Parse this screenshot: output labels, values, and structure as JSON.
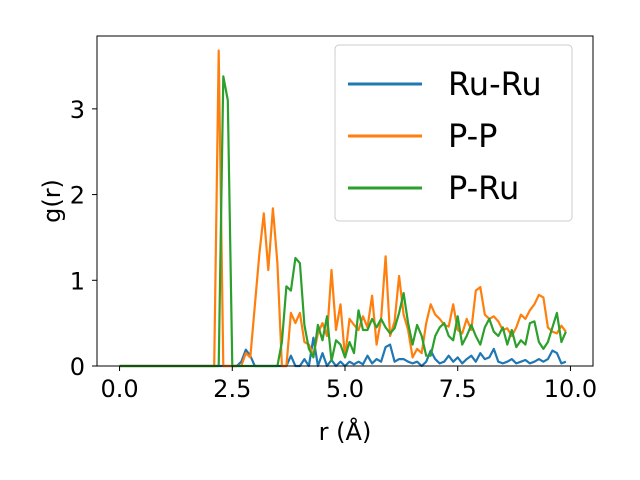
{
  "chart_data": {
    "type": "line",
    "xlabel": "r (Å)",
    "ylabel": "g(r)",
    "xlim": [
      -0.5,
      10.5
    ],
    "ylim": [
      0,
      3.85
    ],
    "xticks": [
      0.0,
      2.5,
      5.0,
      7.5,
      10.0
    ],
    "xtick_labels": [
      "0.0",
      "2.5",
      "5.0",
      "7.5",
      "10.0"
    ],
    "yticks": [
      0,
      1,
      2,
      3
    ],
    "ytick_labels": [
      "0",
      "1",
      "2",
      "3"
    ],
    "grid": false,
    "legend_position": "top-right",
    "series": [
      {
        "name": "Ru-Ru",
        "color": "#1f77b4",
        "x": [
          0,
          2.0,
          2.6,
          2.7,
          2.8,
          2.9,
          3.0,
          3.1,
          3.2,
          3.3,
          3.4,
          3.5,
          3.6,
          3.7,
          3.8,
          3.9,
          4.0,
          4.1,
          4.2,
          4.3,
          4.4,
          4.5,
          4.6,
          4.7,
          4.8,
          4.9,
          5.0,
          5.1,
          5.2,
          5.3,
          5.4,
          5.5,
          5.6,
          5.7,
          5.8,
          5.9,
          6.0,
          6.1,
          6.2,
          6.3,
          6.4,
          6.5,
          6.6,
          6.7,
          6.8,
          6.9,
          7.0,
          7.1,
          7.2,
          7.3,
          7.4,
          7.5,
          7.6,
          7.7,
          7.8,
          7.9,
          8.0,
          8.1,
          8.2,
          8.3,
          8.4,
          8.5,
          8.6,
          8.7,
          8.8,
          8.9,
          9.0,
          9.1,
          9.2,
          9.3,
          9.4,
          9.5,
          9.6,
          9.7,
          9.8,
          9.9
        ],
        "y": [
          0,
          0,
          0,
          0.05,
          0.19,
          0.12,
          0,
          0,
          0,
          0,
          0,
          0,
          0,
          0,
          0.12,
          0,
          0,
          0.08,
          0,
          0.33,
          0,
          0.15,
          0,
          0.07,
          0,
          0.05,
          0,
          0.05,
          0.02,
          0.05,
          0.02,
          0.12,
          0.03,
          0.08,
          0.05,
          0.22,
          0.25,
          0.05,
          0.08,
          0.08,
          0.05,
          0.03,
          0.05,
          0,
          0.05,
          0.18,
          0.08,
          0.03,
          0.05,
          0.12,
          0.05,
          0.1,
          0.03,
          0.08,
          0.12,
          0.05,
          0.15,
          0.08,
          0.1,
          0.2,
          0.05,
          0.03,
          0.05,
          0.08,
          0.03,
          0.05,
          0.07,
          0.03,
          0.05,
          0.08,
          0.05,
          0.08,
          0.18,
          0.15,
          0.03,
          0.05
        ]
      },
      {
        "name": "P-P",
        "color": "#ff7f0e",
        "x": [
          0,
          2.1,
          2.2,
          2.3,
          2.4,
          2.5,
          2.6,
          2.7,
          2.8,
          2.9,
          3.0,
          3.1,
          3.2,
          3.3,
          3.4,
          3.5,
          3.6,
          3.7,
          3.8,
          3.9,
          4.0,
          4.1,
          4.2,
          4.3,
          4.4,
          4.5,
          4.6,
          4.7,
          4.8,
          4.9,
          5.0,
          5.1,
          5.2,
          5.3,
          5.4,
          5.5,
          5.6,
          5.7,
          5.8,
          5.9,
          6.0,
          6.1,
          6.2,
          6.3,
          6.4,
          6.5,
          6.6,
          6.7,
          6.8,
          6.9,
          7.0,
          7.1,
          7.2,
          7.3,
          7.4,
          7.5,
          7.6,
          7.7,
          7.8,
          7.9,
          8.0,
          8.1,
          8.2,
          8.3,
          8.4,
          8.5,
          8.6,
          8.7,
          8.8,
          8.9,
          9.0,
          9.1,
          9.2,
          9.3,
          9.4,
          9.5,
          9.6,
          9.7,
          9.8,
          9.9
        ],
        "y": [
          0,
          0,
          3.68,
          0,
          0,
          0,
          0,
          0,
          0.15,
          0.1,
          0.7,
          1.3,
          1.78,
          1.12,
          1.84,
          1.2,
          0,
          0,
          0.62,
          0.5,
          0.62,
          0.28,
          0.25,
          0.12,
          0.38,
          0.5,
          0.35,
          1.12,
          0.42,
          0.72,
          0.1,
          0.55,
          0.48,
          0.42,
          0.58,
          0.45,
          0.82,
          0.25,
          0.55,
          1.28,
          0.35,
          0.52,
          1.05,
          0.6,
          0.42,
          0.1,
          0.2,
          0.15,
          0.5,
          0.72,
          0.6,
          0.55,
          0.48,
          0.46,
          0.72,
          0.42,
          0.38,
          0.55,
          0.42,
          0.88,
          0.92,
          0.6,
          0.55,
          0.58,
          0.52,
          0.42,
          0.44,
          0.35,
          0.45,
          0.6,
          0.55,
          0.65,
          0.72,
          0.83,
          0.8,
          0.45,
          0.4,
          0.38,
          0.47,
          0.4
        ],
        "y_note": ""
      },
      {
        "name": "P-Ru",
        "color": "#2ca02c",
        "x": [
          0,
          2.2,
          2.3,
          2.4,
          2.5,
          2.6,
          3.5,
          3.6,
          3.7,
          3.8,
          3.9,
          4.0,
          4.1,
          4.2,
          4.3,
          4.4,
          4.5,
          4.6,
          4.7,
          4.8,
          4.9,
          5.0,
          5.1,
          5.2,
          5.3,
          5.4,
          5.5,
          5.6,
          5.7,
          5.8,
          5.9,
          6.0,
          6.1,
          6.2,
          6.3,
          6.4,
          6.5,
          6.6,
          6.7,
          6.8,
          6.9,
          7.0,
          7.1,
          7.2,
          7.3,
          7.4,
          7.5,
          7.6,
          7.7,
          7.8,
          7.9,
          8.0,
          8.1,
          8.2,
          8.3,
          8.4,
          8.5,
          8.6,
          8.7,
          8.8,
          8.9,
          9.0,
          9.1,
          9.2,
          9.3,
          9.4,
          9.5,
          9.6,
          9.7,
          9.8,
          9.9
        ],
        "y": [
          0,
          0,
          3.38,
          3.1,
          0,
          0,
          0,
          0.28,
          0.93,
          0.88,
          1.26,
          1.2,
          0.48,
          0.2,
          0.1,
          0.48,
          0.3,
          0.58,
          0.06,
          0.3,
          0.25,
          0.1,
          0.28,
          0.15,
          0.65,
          0.42,
          0.42,
          0.55,
          0.45,
          0.55,
          0.45,
          0.38,
          0.44,
          0.62,
          0.85,
          0.5,
          0.25,
          0.48,
          0.35,
          0.12,
          0.12,
          0.35,
          0.45,
          0.5,
          0.35,
          0.3,
          0.58,
          0.25,
          0.35,
          0.48,
          0.35,
          0.25,
          0.45,
          0.55,
          0.4,
          0.35,
          0.45,
          0.25,
          0.42,
          0.22,
          0.3,
          0.25,
          0.5,
          0.52,
          0.28,
          0.2,
          0.28,
          0.45,
          0.62,
          0.28,
          0.4
        ]
      }
    ]
  }
}
